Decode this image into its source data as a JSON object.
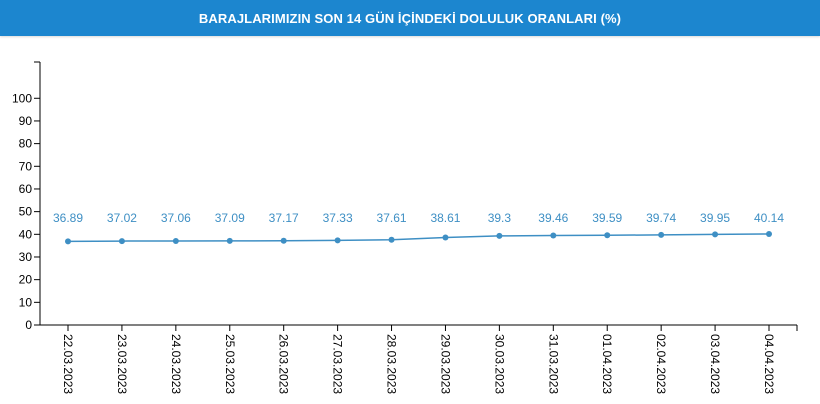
{
  "header": {
    "title": "BARAJLARIMIZIN SON 14 GÜN İÇİNDEKİ DOLULUK ORANLARI (%)"
  },
  "colors": {
    "header_bg": "#1c86cf",
    "line": "#3e8fc4",
    "label": "#3e8fc4",
    "axis": "#000000"
  },
  "chart_data": {
    "type": "line",
    "title": "BARAJLARIMIZIN SON 14 GÜN İÇİNDEKİ DOLULUK ORANLARI (%)",
    "xlabel": "",
    "ylabel": "",
    "categories": [
      "22.03.2023",
      "23.03.2023",
      "24.03.2023",
      "25.03.2023",
      "26.03.2023",
      "27.03.2023",
      "28.03.2023",
      "29.03.2023",
      "30.03.2023",
      "31.03.2023",
      "01.04.2023",
      "02.04.2023",
      "03.04.2023",
      "04.04.2023"
    ],
    "series": [
      {
        "values": [
          36.89,
          37.02,
          37.06,
          37.09,
          37.17,
          37.33,
          37.61,
          38.61,
          39.3,
          39.46,
          39.59,
          39.74,
          39.95,
          40.14
        ],
        "labels": [
          "36.89",
          "37.02",
          "37.06",
          "37.09",
          "37.17",
          "37.33",
          "37.61",
          "38.61",
          "39.3",
          "39.46",
          "39.59",
          "39.74",
          "39.95",
          "40.14"
        ]
      }
    ],
    "yticks": [
      "0",
      "10",
      "20",
      "30",
      "40",
      "50",
      "60",
      "70",
      "80",
      "90",
      "100"
    ],
    "ylim": [
      0,
      116
    ],
    "grid": false,
    "legend": "none"
  }
}
